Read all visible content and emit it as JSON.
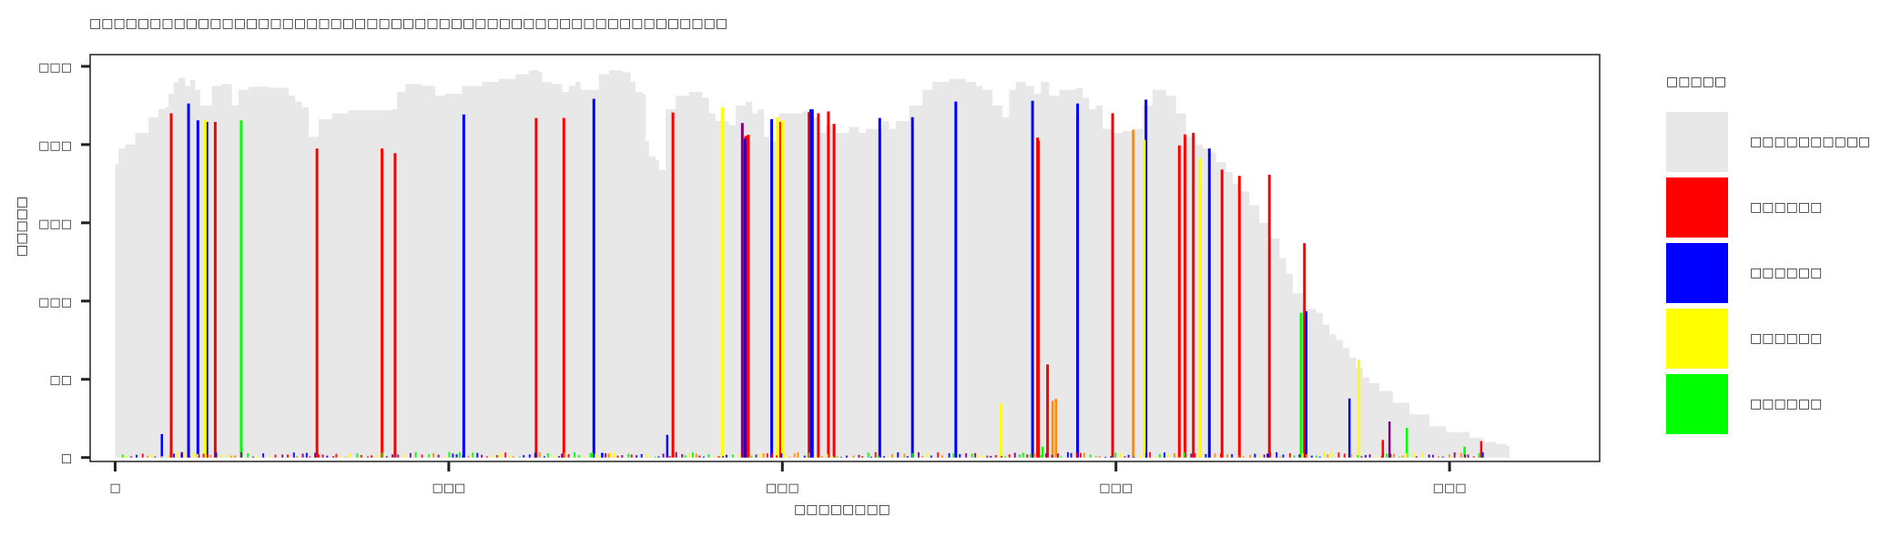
{
  "chart_data": {
    "type": "bar",
    "title": "□□□□□□□□□□□□□□□□□□□□□□□□□□□□□□□□□□□□□□□□□□□□□□□□□□□□□",
    "xlabel": "□□□□□□□□",
    "ylabel": "□□□□□",
    "xlim": [
      -75,
      4450
    ],
    "ylim": [
      -10,
      1030
    ],
    "x_ticks": [
      0,
      1000,
      2000,
      3000,
      4000
    ],
    "x_tick_labels": [
      "□",
      "□□□",
      "□□□",
      "□□□",
      "□□□"
    ],
    "y_ticks": [
      0,
      200,
      400,
      600,
      800,
      1000
    ],
    "y_tick_labels": [
      "□",
      "□□",
      "□□□",
      "□□□",
      "□□□",
      "□□□"
    ],
    "legend_position": "right",
    "legend_title": "□□□□□",
    "background_profile": [
      [
        0,
        750
      ],
      [
        10,
        790
      ],
      [
        30,
        800
      ],
      [
        60,
        830
      ],
      [
        100,
        870
      ],
      [
        130,
        890
      ],
      [
        150,
        895
      ],
      [
        160,
        930
      ],
      [
        175,
        960
      ],
      [
        190,
        970
      ],
      [
        210,
        950
      ],
      [
        225,
        965
      ],
      [
        240,
        940
      ],
      [
        255,
        900
      ],
      [
        270,
        900
      ],
      [
        290,
        950
      ],
      [
        320,
        955
      ],
      [
        350,
        900
      ],
      [
        370,
        940
      ],
      [
        400,
        948
      ],
      [
        460,
        945
      ],
      [
        520,
        925
      ],
      [
        540,
        910
      ],
      [
        560,
        895
      ],
      [
        580,
        820
      ],
      [
        610,
        865
      ],
      [
        650,
        880
      ],
      [
        700,
        888
      ],
      [
        780,
        888
      ],
      [
        830,
        890
      ],
      [
        845,
        935
      ],
      [
        870,
        955
      ],
      [
        920,
        950
      ],
      [
        960,
        925
      ],
      [
        990,
        930
      ],
      [
        1040,
        950
      ],
      [
        1100,
        960
      ],
      [
        1150,
        968
      ],
      [
        1200,
        980
      ],
      [
        1240,
        990
      ],
      [
        1270,
        985
      ],
      [
        1280,
        960
      ],
      [
        1310,
        955
      ],
      [
        1340,
        935
      ],
      [
        1360,
        950
      ],
      [
        1380,
        960
      ],
      [
        1395,
        940
      ],
      [
        1420,
        940
      ],
      [
        1450,
        980
      ],
      [
        1480,
        990
      ],
      [
        1520,
        985
      ],
      [
        1545,
        960
      ],
      [
        1560,
        935
      ],
      [
        1580,
        930
      ],
      [
        1590,
        810
      ],
      [
        1600,
        770
      ],
      [
        1620,
        760
      ],
      [
        1630,
        735
      ],
      [
        1650,
        890
      ],
      [
        1680,
        925
      ],
      [
        1720,
        935
      ],
      [
        1760,
        920
      ],
      [
        1780,
        880
      ],
      [
        1800,
        860
      ],
      [
        1840,
        850
      ],
      [
        1860,
        900
      ],
      [
        1890,
        910
      ],
      [
        1910,
        880
      ],
      [
        1925,
        890
      ],
      [
        1945,
        820
      ],
      [
        1960,
        810
      ],
      [
        1990,
        880
      ],
      [
        2060,
        885
      ],
      [
        2090,
        870
      ],
      [
        2110,
        830
      ],
      [
        2130,
        850
      ],
      [
        2160,
        830
      ],
      [
        2200,
        845
      ],
      [
        2230,
        830
      ],
      [
        2250,
        840
      ],
      [
        2300,
        860
      ],
      [
        2320,
        840
      ],
      [
        2340,
        860
      ],
      [
        2380,
        900
      ],
      [
        2420,
        940
      ],
      [
        2450,
        960
      ],
      [
        2500,
        968
      ],
      [
        2550,
        960
      ],
      [
        2580,
        950
      ],
      [
        2600,
        940
      ],
      [
        2630,
        900
      ],
      [
        2660,
        870
      ],
      [
        2680,
        940
      ],
      [
        2700,
        960
      ],
      [
        2730,
        950
      ],
      [
        2755,
        930
      ],
      [
        2775,
        960
      ],
      [
        2800,
        925
      ],
      [
        2830,
        940
      ],
      [
        2880,
        945
      ],
      [
        2900,
        920
      ],
      [
        2920,
        890
      ],
      [
        2940,
        900
      ],
      [
        2960,
        840
      ],
      [
        2990,
        830
      ],
      [
        3020,
        835
      ],
      [
        3050,
        840
      ],
      [
        3080,
        900
      ],
      [
        3110,
        940
      ],
      [
        3150,
        925
      ],
      [
        3180,
        880
      ],
      [
        3210,
        820
      ],
      [
        3240,
        800
      ],
      [
        3260,
        790
      ],
      [
        3280,
        780
      ],
      [
        3300,
        755
      ],
      [
        3330,
        730
      ],
      [
        3350,
        700
      ],
      [
        3370,
        680
      ],
      [
        3400,
        645
      ],
      [
        3430,
        600
      ],
      [
        3460,
        560
      ],
      [
        3490,
        510
      ],
      [
        3510,
        470
      ],
      [
        3530,
        420
      ],
      [
        3560,
        380
      ],
      [
        3600,
        370
      ],
      [
        3620,
        340
      ],
      [
        3640,
        315
      ],
      [
        3660,
        300
      ],
      [
        3680,
        280
      ],
      [
        3700,
        255
      ],
      [
        3720,
        230
      ],
      [
        3740,
        205
      ],
      [
        3760,
        190
      ],
      [
        3790,
        170
      ],
      [
        3830,
        140
      ],
      [
        3880,
        110
      ],
      [
        3940,
        80
      ],
      [
        3990,
        65
      ],
      [
        4060,
        50
      ],
      [
        4100,
        40
      ],
      [
        4140,
        35
      ],
      [
        4170,
        30
      ],
      [
        4180,
        0
      ]
    ],
    "series": [
      {
        "name": "□□□□□□□□□□",
        "color": "#e8e8e8",
        "bars": []
      },
      {
        "name": "□□□□□□",
        "color": "#ff0000",
        "bars": [
          [
            168,
            880
          ],
          [
            300,
            858
          ],
          [
            605,
            790
          ],
          [
            1672,
            882
          ],
          [
            2155,
            853
          ],
          [
            2990,
            880
          ],
          [
            3460,
            723
          ],
          [
            3800,
            45
          ],
          [
            1262,
            868
          ],
          [
            1345,
            868
          ],
          [
            2885,
            870
          ],
          [
            2765,
            818
          ],
          [
            1890,
            822
          ],
          [
            1898,
            825
          ],
          [
            2108,
            880
          ],
          [
            2138,
            885
          ],
          [
            3232,
            830
          ],
          [
            3190,
            798
          ],
          [
            3252,
            690
          ],
          [
            3318,
            736
          ],
          [
            3370,
            720
          ],
          [
            3565,
            548
          ],
          [
            4095,
            42
          ],
          [
            839,
            778
          ],
          [
            800,
            790
          ],
          [
            2768,
            810
          ],
          [
            3207,
            826
          ],
          [
            2795,
            238
          ],
          [
            2080,
            883
          ],
          [
            1995,
            858
          ]
        ]
      },
      {
        "name": "□□□□□□",
        "color": "#0000ff",
        "bars": [
          [
            220,
            905
          ],
          [
            275,
            858
          ],
          [
            1045,
            877
          ],
          [
            1435,
            917
          ],
          [
            2085,
            890
          ],
          [
            2292,
            868
          ],
          [
            1655,
            58
          ],
          [
            1888,
            815
          ],
          [
            3280,
            790
          ],
          [
            2520,
            910
          ],
          [
            2885,
            905
          ],
          [
            2750,
            912
          ],
          [
            3570,
            374
          ],
          [
            3700,
            151
          ],
          [
            248,
            862
          ],
          [
            140,
            60
          ],
          [
            1968,
            865
          ],
          [
            1260,
            12
          ],
          [
            2390,
            870
          ],
          [
            3090,
            915
          ],
          [
            2090,
            890
          ],
          [
            3455,
            10
          ],
          [
            1460,
            12
          ]
        ]
      },
      {
        "name": "□□□□□□",
        "color": "#ffff00",
        "bars": [
          [
            270,
            862
          ],
          [
            2655,
            138
          ],
          [
            3728,
            250
          ],
          [
            3252,
            765
          ],
          [
            1820,
            895
          ],
          [
            1985,
            870
          ],
          [
            3085,
            812
          ],
          [
            2000,
            862
          ]
        ]
      },
      {
        "name": "□□□□□□",
        "color": "#00ff00",
        "bars": [
          [
            378,
            862
          ],
          [
            3555,
            370
          ],
          [
            3872,
            76
          ],
          [
            4045,
            28
          ],
          [
            2780,
            28
          ],
          [
            1430,
            12
          ]
        ]
      },
      {
        "name": "□□□□",
        "color": "#ff8c00",
        "bars": [
          [
            3052,
            838
          ],
          [
            2810,
            145
          ],
          [
            2820,
            150
          ],
          [
            1480,
            10
          ]
        ]
      },
      {
        "name": "□□□□",
        "color": "#800080",
        "bars": [
          [
            1880,
            855
          ],
          [
            3820,
            92
          ],
          [
            1340,
            10
          ],
          [
            200,
            14
          ],
          [
            250,
            8
          ]
        ]
      }
    ],
    "legend_entries": [
      {
        "label": "□□□□□□□□□□",
        "color": "#e8e8e8"
      },
      {
        "label": "□□□□□□",
        "color": "#ff0000"
      },
      {
        "label": "□□□□□□",
        "color": "#0000ff"
      },
      {
        "label": "□□□□□□",
        "color": "#ffff00"
      },
      {
        "label": "□□□□□□",
        "color": "#00ff00"
      }
    ]
  }
}
